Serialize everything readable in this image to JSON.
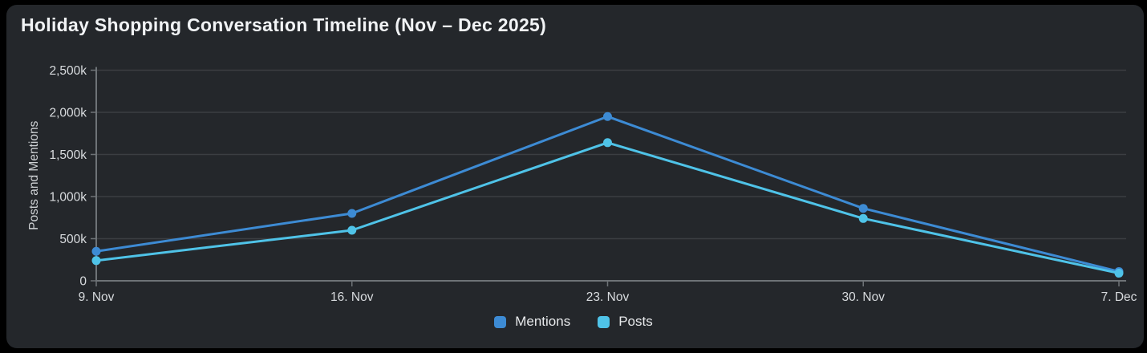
{
  "header": {
    "title": "Holiday Shopping Conversation Timeline (Nov – Dec 2025)"
  },
  "chart_data": {
    "type": "line",
    "title": "Holiday Shopping Conversation Timeline (Nov – Dec 2025)",
    "categories": [
      "9. Nov",
      "16. Nov",
      "23. Nov",
      "30. Nov",
      "7. Dec"
    ],
    "series": [
      {
        "name": "Mentions",
        "color": "#3d8bd4",
        "values": [
          350000,
          800000,
          1950000,
          860000,
          110000
        ]
      },
      {
        "name": "Posts",
        "color": "#4fc3e8",
        "values": [
          240000,
          600000,
          1640000,
          740000,
          90000
        ]
      }
    ],
    "xlabel": "",
    "ylabel": "Posts and Mentions",
    "ylim": [
      0,
      2500000
    ],
    "ytick_step": 500000,
    "ytick_labels": [
      "0",
      "500k",
      "1,000k",
      "1,500k",
      "2,000k",
      "2,500k"
    ],
    "grid": true,
    "legend_position": "bottom",
    "marker": "circle"
  },
  "colors": {
    "card_background": "#24272b",
    "outer_background": "#000000",
    "title_text": "#f1f3f5",
    "axis_line": "#6e7377",
    "gridline": "#3b3e42",
    "tick_label": "#d8dbde",
    "axis_title": "#cfd2d5",
    "mentions_series": "#3d8bd4",
    "posts_series": "#4fc3e8"
  }
}
